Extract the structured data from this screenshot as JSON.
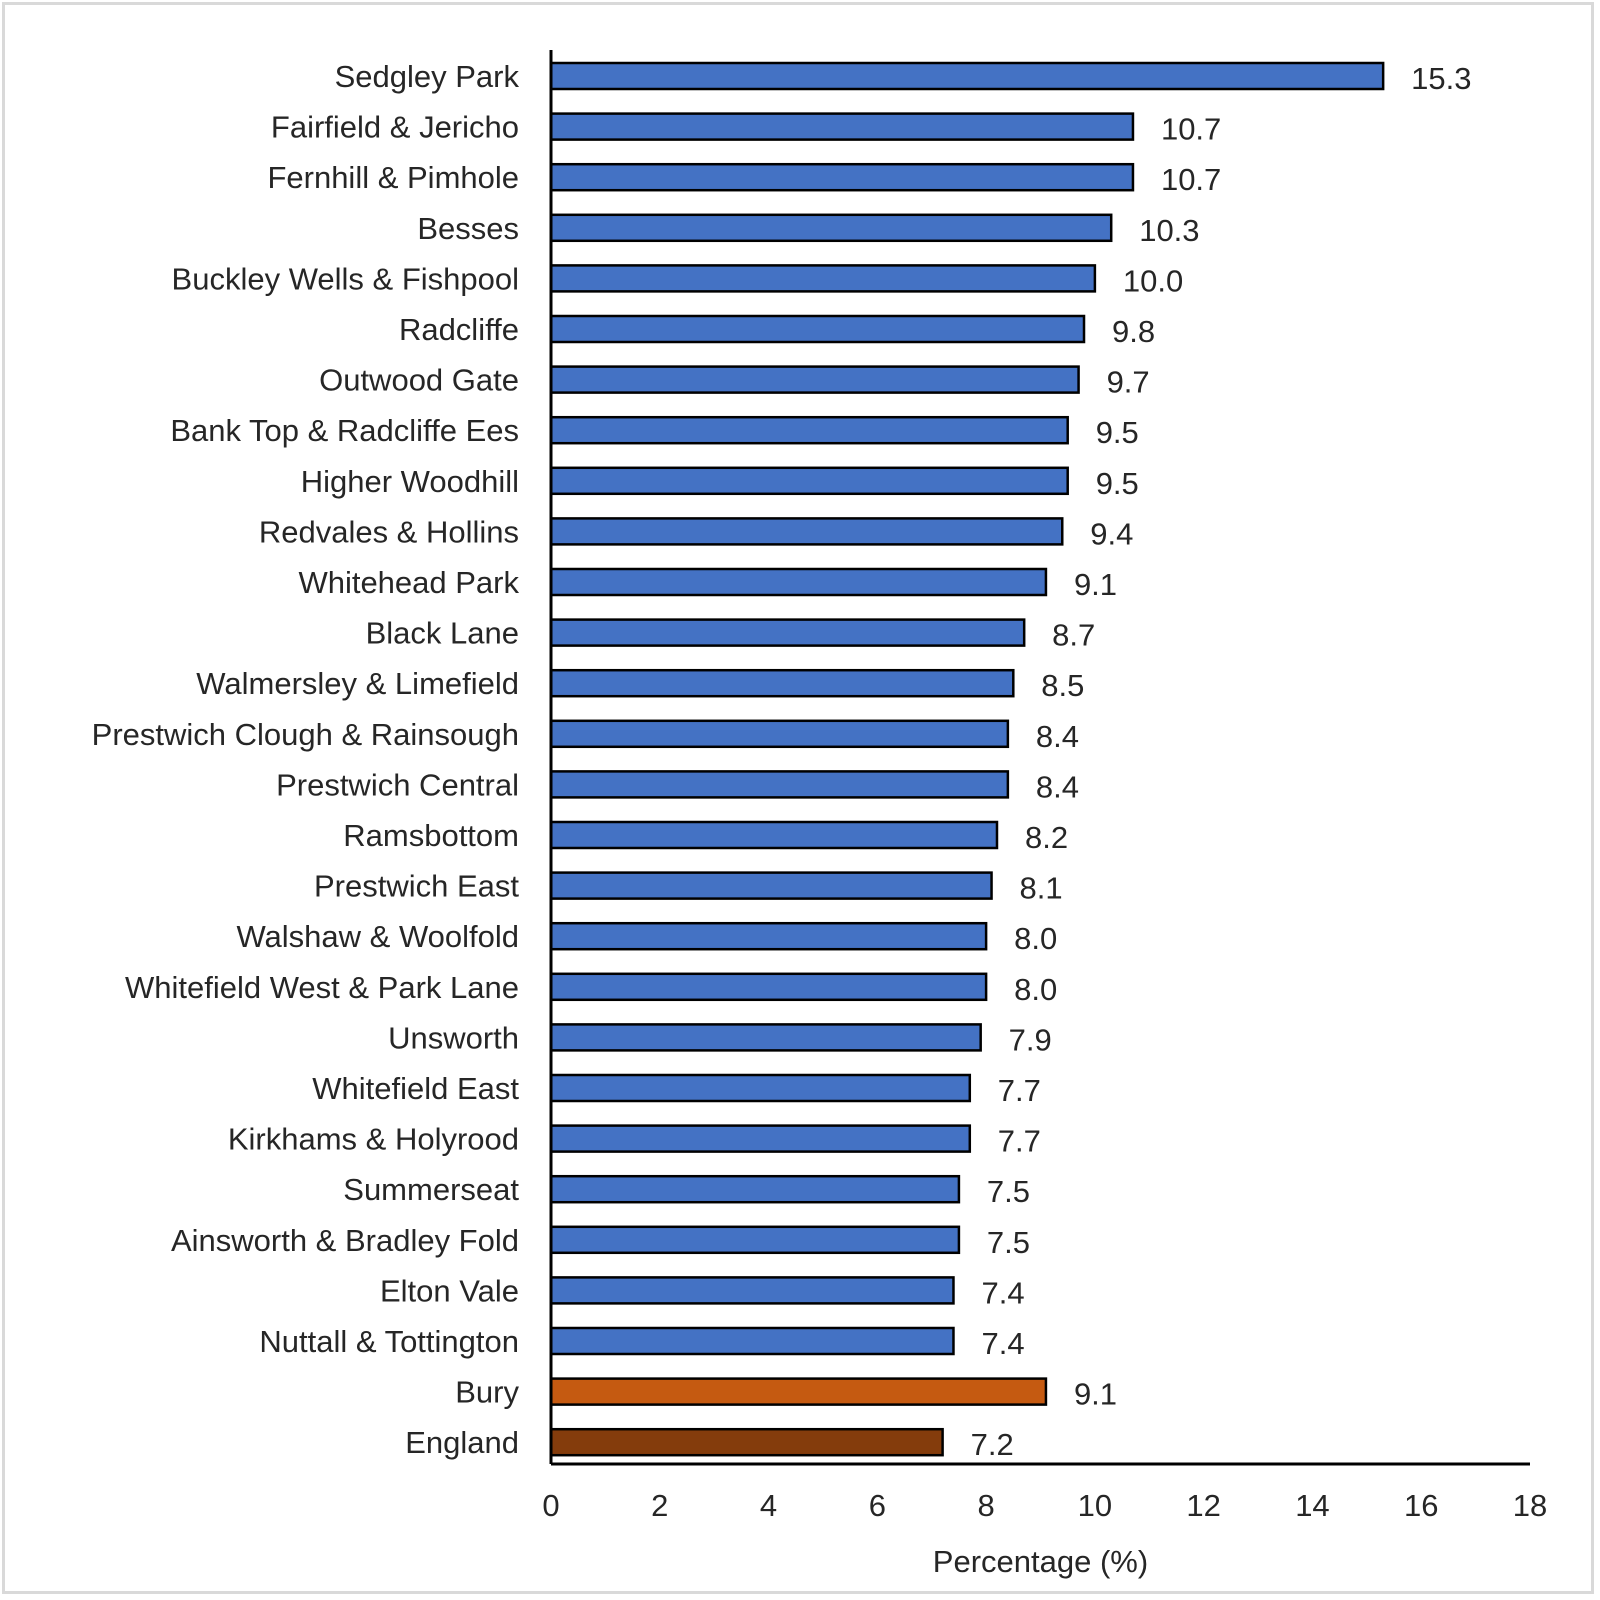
{
  "chart_data": {
    "type": "bar",
    "orientation": "horizontal",
    "title": "",
    "xlabel": "Percentage (%)",
    "ylabel": "",
    "xlim": [
      0,
      18
    ],
    "xticks": [
      0,
      2,
      4,
      6,
      8,
      10,
      12,
      14,
      16,
      18
    ],
    "grid": false,
    "legend": "none",
    "categories": [
      "Sedgley Park",
      "Fairfield & Jericho",
      "Fernhill & Pimhole",
      "Besses",
      "Buckley Wells & Fishpool",
      "Radcliffe",
      "Outwood Gate",
      "Bank Top & Radcliffe Ees",
      "Higher Woodhill",
      "Redvales & Hollins",
      "Whitehead Park",
      "Black Lane",
      "Walmersley & Limefield",
      "Prestwich Clough & Rainsough",
      "Prestwich Central",
      "Ramsbottom",
      "Prestwich East",
      "Walshaw & Woolfold",
      "Whitefield West & Park Lane",
      "Unsworth",
      "Whitefield East",
      "Kirkhams & Holyrood",
      "Summerseat",
      "Ainsworth & Bradley Fold",
      "Elton Vale",
      "Nuttall & Tottington",
      "Bury",
      "England"
    ],
    "values": [
      15.3,
      10.7,
      10.7,
      10.3,
      10.0,
      9.8,
      9.7,
      9.5,
      9.5,
      9.4,
      9.1,
      8.7,
      8.5,
      8.4,
      8.4,
      8.2,
      8.1,
      8.0,
      8.0,
      7.9,
      7.7,
      7.7,
      7.5,
      7.5,
      7.4,
      7.4,
      9.1,
      7.2
    ],
    "value_labels": [
      "15.3",
      "10.7",
      "10.7",
      "10.3",
      "10.0",
      "9.8",
      "9.7",
      "9.5",
      "9.5",
      "9.4",
      "9.1",
      "8.7",
      "8.5",
      "8.4",
      "8.4",
      "8.2",
      "8.1",
      "8.0",
      "8.0",
      "7.9",
      "7.7",
      "7.7",
      "7.5",
      "7.5",
      "7.4",
      "7.4",
      "9.1",
      "7.2"
    ],
    "bar_colors": [
      "#4472c4",
      "#4472c4",
      "#4472c4",
      "#4472c4",
      "#4472c4",
      "#4472c4",
      "#4472c4",
      "#4472c4",
      "#4472c4",
      "#4472c4",
      "#4472c4",
      "#4472c4",
      "#4472c4",
      "#4472c4",
      "#4472c4",
      "#4472c4",
      "#4472c4",
      "#4472c4",
      "#4472c4",
      "#4472c4",
      "#4472c4",
      "#4472c4",
      "#4472c4",
      "#4472c4",
      "#4472c4",
      "#4472c4",
      "#c55a11",
      "#843c0c"
    ],
    "bar_outline_color": "#000000"
  }
}
